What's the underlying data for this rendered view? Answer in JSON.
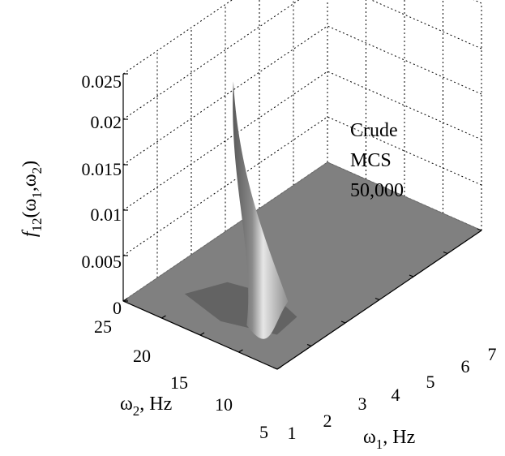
{
  "chart_data": {
    "type": "surface",
    "title": "",
    "zlabel": {
      "main": "f",
      "sub": "12",
      "args": "(ω",
      "arg1sub": "1",
      "comma": ",ω",
      "arg2sub": "2",
      "close": ")"
    },
    "xlabel": {
      "main": "ω",
      "sub": "1",
      "unit": ", Hz"
    },
    "ylabel": {
      "main": "ω",
      "sub": "2",
      "unit": ", Hz"
    },
    "x_ticks": [
      "1",
      "2",
      "3",
      "4",
      "5",
      "6",
      "7"
    ],
    "y_ticks": [
      "5",
      "10",
      "15",
      "20",
      "25"
    ],
    "z_ticks": [
      "0",
      "0.005",
      "0.01",
      "0.015",
      "0.02",
      "0.025"
    ],
    "xlim": [
      1,
      7
    ],
    "ylim": [
      5,
      25
    ],
    "zlim": [
      0,
      0.025
    ],
    "grid": true,
    "annotation": [
      "Crude",
      "MCS",
      "50,000"
    ],
    "peak": {
      "x": 2.2,
      "y": 16,
      "z": 0.0245
    },
    "surface_color": "#808080",
    "highlight_color": "#e6e6e6"
  }
}
